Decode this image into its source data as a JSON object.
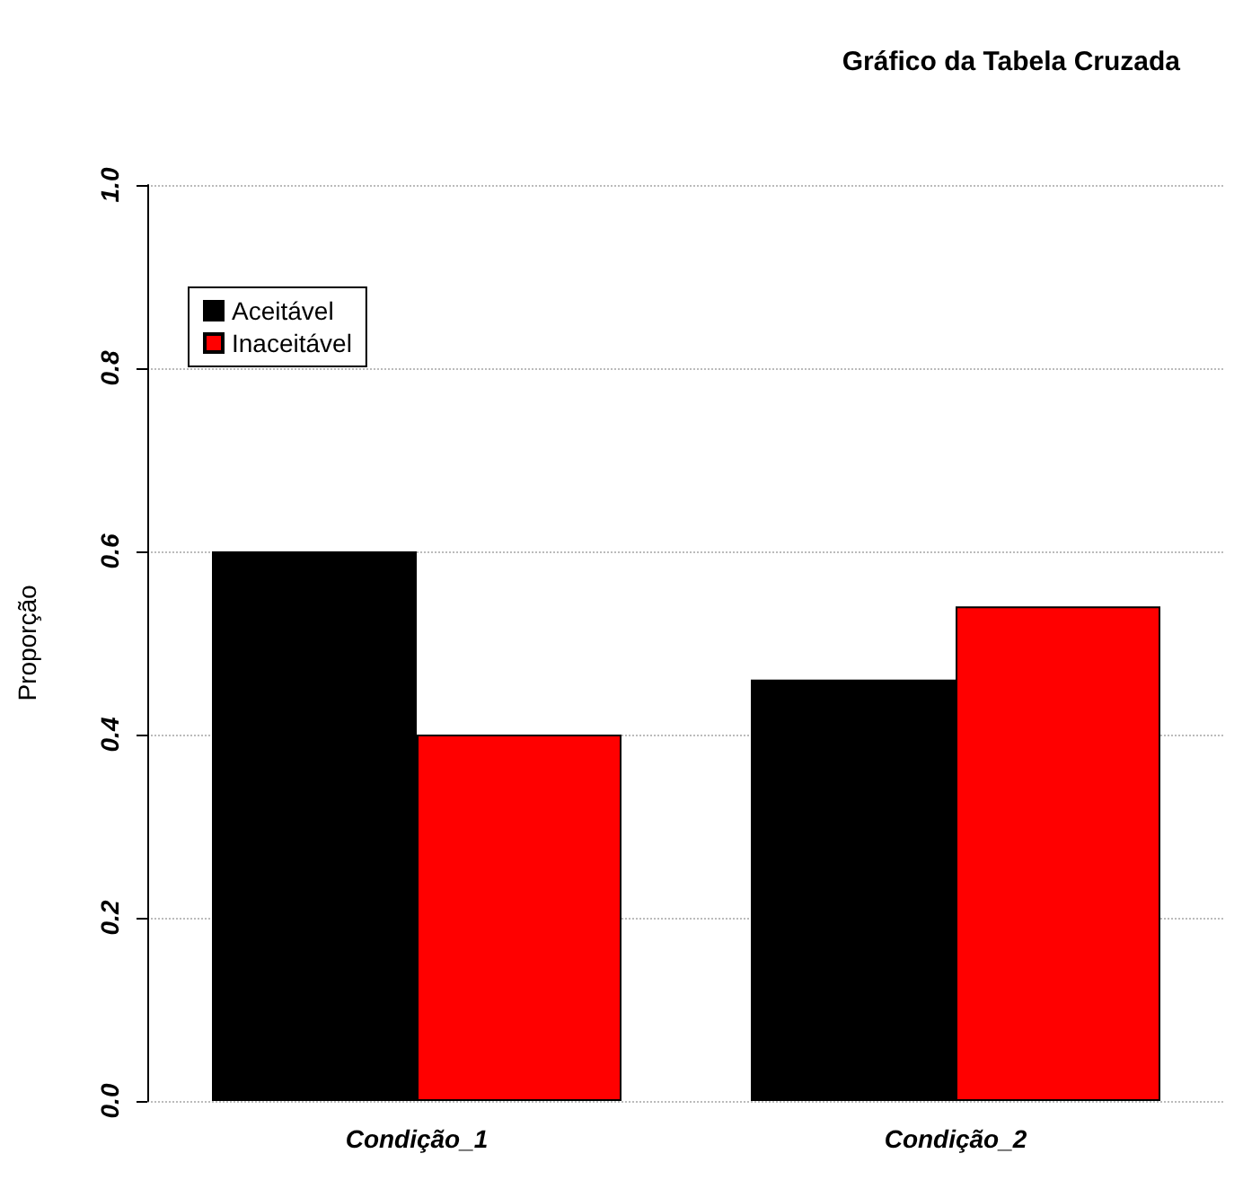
{
  "chart_data": {
    "type": "bar",
    "title": "Gráfico da Tabela Cruzada",
    "ylabel": "Proporção",
    "categories": [
      "Condição_1",
      "Condição_2"
    ],
    "series": [
      {
        "name": "Aceitável",
        "color": "#000000",
        "values": [
          0.6,
          0.46
        ]
      },
      {
        "name": "Inaceitável",
        "color": "#ff0000",
        "values": [
          0.4,
          0.54
        ]
      }
    ],
    "ylim": [
      0,
      1
    ],
    "yticks": [
      {
        "value": 0,
        "label": "0.0"
      },
      0.2,
      0.4,
      0.6,
      0.8,
      {
        "value": 1,
        "label": "1.0"
      }
    ],
    "grid": "y",
    "legend": "top left"
  }
}
